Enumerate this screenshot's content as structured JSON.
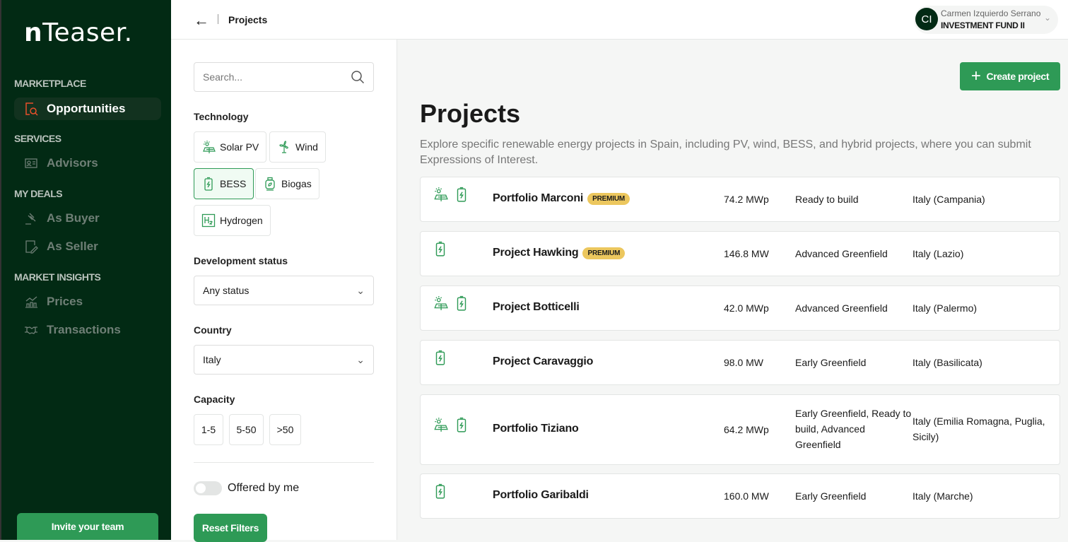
{
  "sidebar": {
    "logo": "nTeaser.",
    "sections": [
      {
        "title": "MARKETPLACE",
        "items": [
          {
            "label": "Opportunities",
            "icon": "opportunities-search-icon",
            "active": true
          }
        ]
      },
      {
        "title": "SERVICES",
        "items": [
          {
            "label": "Advisors",
            "icon": "id-card-icon"
          }
        ]
      },
      {
        "title": "MY DEALS",
        "items": [
          {
            "label": "As Buyer",
            "icon": "gavel-icon"
          },
          {
            "label": "As Seller",
            "icon": "document-edit-icon"
          }
        ]
      },
      {
        "title": "MARKET INSIGHTS",
        "items": [
          {
            "label": "Prices",
            "icon": "chart-icon"
          },
          {
            "label": "Transactions",
            "icon": "handshake-icon"
          }
        ]
      }
    ],
    "invite": "Invite your team"
  },
  "header": {
    "breadcrumb": "Projects",
    "user": {
      "initials": "CI",
      "name": "Carmen Izquierdo Serrano",
      "fund": "INVESTMENT FUND II"
    }
  },
  "filters": {
    "search_placeholder": "Search...",
    "technology_label": "Technology",
    "technologies": [
      {
        "label": "Solar PV",
        "selected": false
      },
      {
        "label": "Wind",
        "selected": false
      },
      {
        "label": "BESS",
        "selected": true
      },
      {
        "label": "Biogas",
        "selected": false
      },
      {
        "label": "Hydrogen",
        "selected": false
      }
    ],
    "status_label": "Development status",
    "status_value": "Any status",
    "country_label": "Country",
    "country_value": "Italy",
    "capacity_label": "Capacity",
    "capacity_options": [
      "1-5",
      "5-50",
      ">50"
    ],
    "offered_label": "Offered by me",
    "offered_on": false,
    "reset": "Reset Filters"
  },
  "main": {
    "create": "Create project",
    "title": "Projects",
    "description": "Explore specific renewable energy projects in Spain, including PV, wind, BESS, and hybrid projects, where you can submit Expressions of Interest.",
    "projects": [
      {
        "name": "Portfolio Marconi",
        "premium": "PREMIUM",
        "icons": [
          "solar",
          "battery"
        ],
        "capacity": "74.2 MWp",
        "status": "Ready to build",
        "location": "Italy (Campania)"
      },
      {
        "name": "Project Hawking",
        "premium": "PREMIUM",
        "icons": [
          "battery"
        ],
        "capacity": "146.8 MW",
        "status": "Advanced Greenfield",
        "location": "Italy (Lazio)"
      },
      {
        "name": "Project Botticelli",
        "premium": null,
        "icons": [
          "solar",
          "battery"
        ],
        "capacity": "42.0 MWp",
        "status": "Advanced Greenfield",
        "location": "Italy (Palermo)"
      },
      {
        "name": "Project Caravaggio",
        "premium": null,
        "icons": [
          "battery"
        ],
        "capacity": "98.0 MW",
        "status": "Early Greenfield",
        "location": "Italy (Basilicata)"
      },
      {
        "name": "Portfolio Tiziano",
        "premium": null,
        "icons": [
          "solar",
          "battery"
        ],
        "capacity": "64.2 MWp",
        "status": "Early Greenfield, Ready to build, Advanced Greenfield",
        "location": "Italy (Emilia Romagna, Puglia, Sicily)"
      },
      {
        "name": "Portfolio Garibaldi",
        "premium": null,
        "icons": [
          "battery"
        ],
        "capacity": "160.0 MW",
        "status": "Early Greenfield",
        "location": "Italy (Marche)"
      }
    ]
  },
  "colors": {
    "sidebar": "#022a14",
    "accent": "#2e9a56",
    "premium": "#ecc75e",
    "active_icon": "#e8502b"
  }
}
